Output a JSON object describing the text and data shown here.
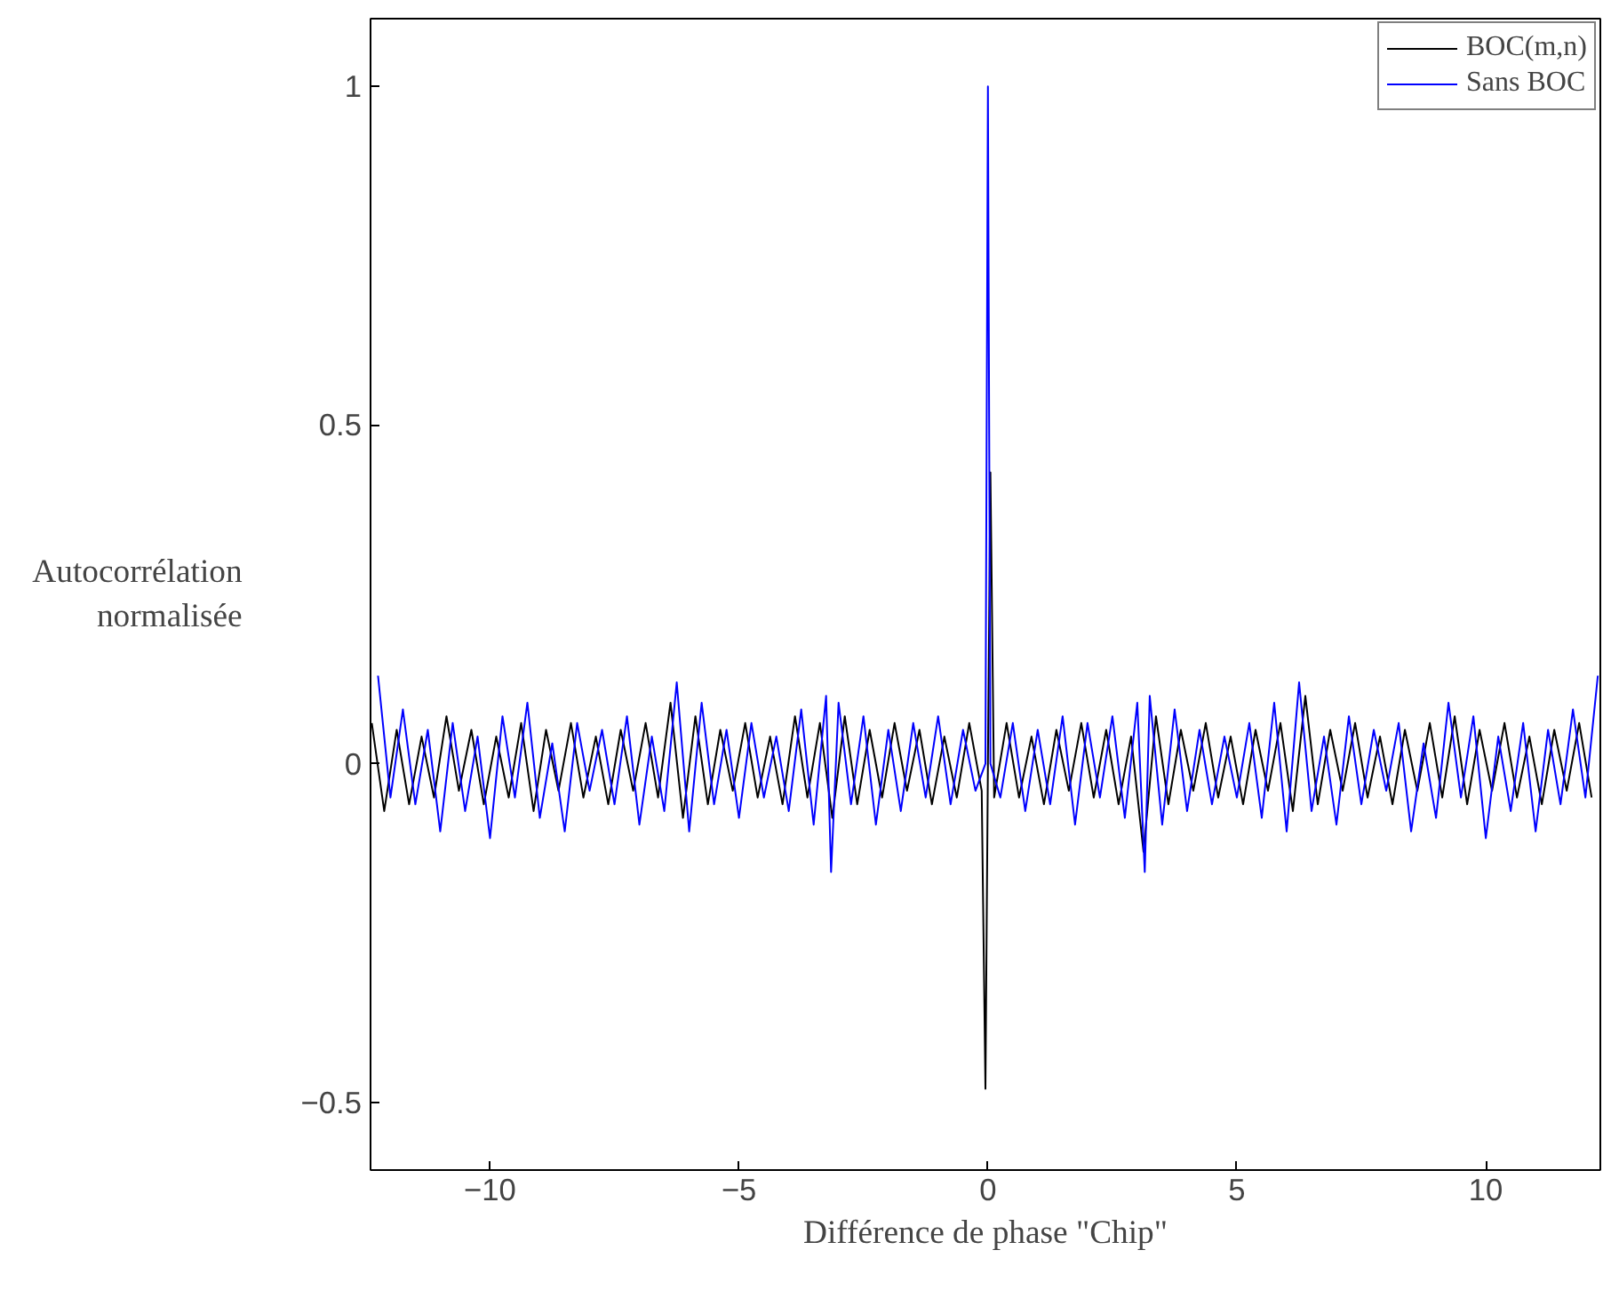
{
  "chart_data": {
    "type": "line",
    "xlabel": "Différence de phase \"Chip\"",
    "ylabel": "Autocorrélation normalisée",
    "xlim": [
      -12.4,
      12.3
    ],
    "ylim": [
      -0.6,
      1.1
    ],
    "xticks": [
      -10,
      -5,
      0,
      5,
      10
    ],
    "yticks": [
      -0.5,
      0,
      0.5,
      1
    ],
    "grid": false,
    "legend": "top right",
    "marker": "none",
    "line_style": "solid",
    "series": [
      {
        "name": "BOC(m,n)",
        "color": "#000000",
        "x": [
          -12.375,
          -12.125,
          -11.875,
          -11.625,
          -11.375,
          -11.125,
          -10.875,
          -10.625,
          -10.375,
          -10.125,
          -9.875,
          -9.625,
          -9.375,
          -9.125,
          -8.875,
          -8.625,
          -8.375,
          -8.125,
          -7.875,
          -7.625,
          -7.375,
          -7.125,
          -6.875,
          -6.625,
          -6.375,
          -6.125,
          -5.875,
          -5.625,
          -5.375,
          -5.125,
          -4.875,
          -4.625,
          -4.375,
          -4.125,
          -3.875,
          -3.625,
          -3.375,
          -3.125,
          -2.875,
          -2.625,
          -2.375,
          -2.125,
          -1.875,
          -1.625,
          -1.375,
          -1.125,
          -0.875,
          -0.625,
          -0.375,
          -0.125,
          -0.05,
          0,
          0.05,
          0.125,
          0.375,
          0.625,
          0.875,
          1.125,
          1.375,
          1.625,
          1.875,
          2.125,
          2.375,
          2.625,
          2.875,
          3.125,
          3.375,
          3.625,
          3.875,
          4.125,
          4.375,
          4.625,
          4.875,
          5.125,
          5.375,
          5.625,
          5.875,
          6.125,
          6.375,
          6.625,
          6.875,
          7.125,
          7.375,
          7.625,
          7.875,
          8.125,
          8.375,
          8.625,
          8.875,
          9.125,
          9.375,
          9.625,
          9.875,
          10.125,
          10.375,
          10.625,
          10.875,
          11.125,
          11.375,
          11.625,
          11.875,
          12.125
        ],
        "values": [
          0.06,
          -0.07,
          0.05,
          -0.06,
          0.04,
          -0.05,
          0.07,
          -0.04,
          0.05,
          -0.06,
          0.04,
          -0.05,
          0.06,
          -0.07,
          0.05,
          -0.04,
          0.06,
          -0.05,
          0.04,
          -0.06,
          0.05,
          -0.04,
          0.06,
          -0.05,
          0.09,
          -0.08,
          0.07,
          -0.06,
          0.05,
          -0.04,
          0.06,
          -0.05,
          0.04,
          -0.06,
          0.07,
          -0.05,
          0.06,
          -0.08,
          0.07,
          -0.06,
          0.05,
          -0.05,
          0.06,
          -0.04,
          0.05,
          -0.06,
          0.04,
          -0.05,
          0.06,
          -0.04,
          -0.48,
          0.0,
          0.43,
          -0.05,
          0.06,
          -0.05,
          0.04,
          -0.06,
          0.05,
          -0.04,
          0.06,
          -0.05,
          0.05,
          -0.06,
          0.04,
          -0.13,
          0.07,
          -0.06,
          0.05,
          -0.04,
          0.06,
          -0.05,
          0.04,
          -0.06,
          0.05,
          -0.04,
          0.06,
          -0.07,
          0.1,
          -0.06,
          0.05,
          -0.04,
          0.06,
          -0.05,
          0.04,
          -0.06,
          0.05,
          -0.04,
          0.06,
          -0.05,
          0.07,
          -0.06,
          0.05,
          -0.04,
          0.06,
          -0.05,
          0.04,
          -0.06,
          0.05,
          -0.04,
          0.06,
          -0.05
        ]
      },
      {
        "name": "Sans BOC",
        "color": "#0000ff",
        "x": [
          -12.25,
          -12,
          -11.75,
          -11.5,
          -11.25,
          -11,
          -10.75,
          -10.5,
          -10.25,
          -10,
          -9.75,
          -9.5,
          -9.25,
          -9,
          -8.75,
          -8.5,
          -8.25,
          -8,
          -7.75,
          -7.5,
          -7.25,
          -7,
          -6.75,
          -6.5,
          -6.25,
          -6,
          -5.75,
          -5.5,
          -5.25,
          -5,
          -4.75,
          -4.5,
          -4.25,
          -4,
          -3.75,
          -3.5,
          -3.25,
          -3.15,
          -3,
          -2.75,
          -2.5,
          -2.25,
          -2,
          -1.75,
          -1.5,
          -1.25,
          -1,
          -0.75,
          -0.5,
          -0.25,
          -0.05,
          0,
          0.05,
          0.25,
          0.5,
          0.75,
          1,
          1.25,
          1.5,
          1.75,
          2,
          2.25,
          2.5,
          2.75,
          3,
          3.15,
          3.25,
          3.5,
          3.75,
          4,
          4.25,
          4.5,
          4.75,
          5,
          5.25,
          5.5,
          5.75,
          6,
          6.25,
          6.5,
          6.75,
          7,
          7.25,
          7.5,
          7.75,
          8,
          8.25,
          8.5,
          8.75,
          9,
          9.25,
          9.5,
          9.75,
          10,
          10.25,
          10.5,
          10.75,
          11,
          11.25,
          11.5,
          11.75,
          12,
          12.25
        ],
        "values": [
          0.13,
          -0.05,
          0.08,
          -0.06,
          0.05,
          -0.1,
          0.06,
          -0.07,
          0.04,
          -0.11,
          0.07,
          -0.05,
          0.09,
          -0.08,
          0.03,
          -0.1,
          0.06,
          -0.04,
          0.05,
          -0.06,
          0.07,
          -0.09,
          0.04,
          -0.07,
          0.12,
          -0.1,
          0.09,
          -0.06,
          0.05,
          -0.08,
          0.06,
          -0.05,
          0.04,
          -0.07,
          0.08,
          -0.09,
          0.1,
          -0.16,
          0.09,
          -0.06,
          0.07,
          -0.09,
          0.05,
          -0.07,
          0.06,
          -0.05,
          0.07,
          -0.06,
          0.05,
          -0.04,
          0.0,
          1.0,
          0.0,
          -0.05,
          0.06,
          -0.07,
          0.05,
          -0.06,
          0.07,
          -0.09,
          0.06,
          -0.05,
          0.07,
          -0.08,
          0.09,
          -0.16,
          0.1,
          -0.09,
          0.08,
          -0.07,
          0.05,
          -0.06,
          0.04,
          -0.05,
          0.06,
          -0.08,
          0.09,
          -0.1,
          0.12,
          -0.07,
          0.04,
          -0.09,
          0.07,
          -0.06,
          0.05,
          -0.04,
          0.06,
          -0.1,
          0.03,
          -0.08,
          0.09,
          -0.05,
          0.07,
          -0.11,
          0.04,
          -0.07,
          0.06,
          -0.1,
          0.05,
          -0.06,
          0.08,
          -0.05,
          0.13
        ]
      }
    ]
  }
}
